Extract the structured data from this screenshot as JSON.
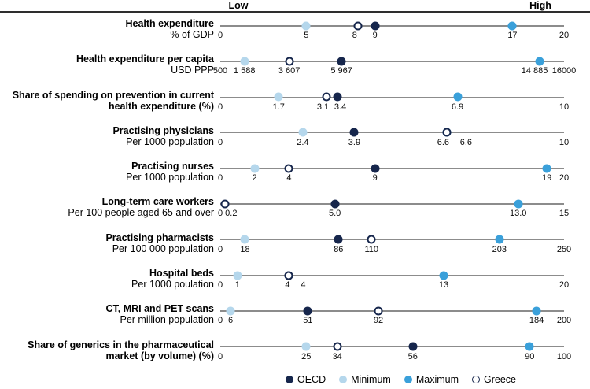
{
  "header": {
    "low": "Low",
    "high": "High"
  },
  "colors": {
    "oecd": "#16264c",
    "minimum": "#b5d7ec",
    "maximum": "#3aa0da",
    "greece_fill": "#ffffff",
    "greece_border": "#16264c",
    "axis_line": "#8c8c8c",
    "header_line": "#2e2e2e"
  },
  "legend": [
    {
      "series": "oecd",
      "label": "OECD"
    },
    {
      "series": "minimum",
      "label": "Minimum"
    },
    {
      "series": "maximum",
      "label": "Maximum"
    },
    {
      "series": "greece",
      "label": "Greece"
    }
  ],
  "chart_data": {
    "type": "scatter",
    "variant": "dot-range-plot",
    "legend_position": "bottom",
    "series_names": [
      "OECD",
      "Minimum",
      "Maximum",
      "Greece"
    ],
    "rows": [
      {
        "title": "Health expenditure",
        "subtitle": "% of GDP",
        "subtitle_bold": false,
        "axis": {
          "min": 0,
          "max": 20,
          "min_label": "0",
          "max_label": "20"
        },
        "points": [
          {
            "series": "minimum",
            "value": 5,
            "label": "5"
          },
          {
            "series": "greece",
            "value": 8,
            "label": "8",
            "label_dx": -4
          },
          {
            "series": "oecd",
            "value": 9,
            "label": "9"
          },
          {
            "series": "maximum",
            "value": 17,
            "label": "17"
          }
        ]
      },
      {
        "title": "Health expenditure per capita",
        "subtitle": "USD PPP",
        "subtitle_bold": false,
        "axis": {
          "min": 500,
          "max": 16000,
          "min_label": "500",
          "max_label": "16000"
        },
        "points": [
          {
            "series": "minimum",
            "value": 1588,
            "label": "1 588"
          },
          {
            "series": "greece",
            "value": 3607,
            "label": "3 607"
          },
          {
            "series": "oecd",
            "value": 5967,
            "label": "5 967"
          },
          {
            "series": "maximum",
            "value": 14885,
            "label": "14 885",
            "label_dx": -6
          }
        ]
      },
      {
        "title": "Share of spending on prevention in current",
        "subtitle": "health expenditure (%)",
        "subtitle_bold": true,
        "axis": {
          "min": 0,
          "max": 10,
          "min_label": "0",
          "max_label": "10"
        },
        "points": [
          {
            "series": "minimum",
            "value": 1.7,
            "label": "1.7"
          },
          {
            "series": "greece",
            "value": 3.1,
            "label": "3.1",
            "label_dx": -5
          },
          {
            "series": "oecd",
            "value": 3.4,
            "label": "3.4",
            "label_dx": 4
          },
          {
            "series": "maximum",
            "value": 6.9,
            "label": "6.9"
          }
        ]
      },
      {
        "title": "Practising physicians",
        "subtitle": "Per 1000 population",
        "subtitle_bold": false,
        "axis": {
          "min": 0,
          "max": 10,
          "min_label": "0",
          "max_label": "10"
        },
        "points": [
          {
            "series": "minimum",
            "value": 2.4,
            "label": "2.4"
          },
          {
            "series": "oecd",
            "value": 3.9,
            "label": "3.9"
          },
          {
            "series": "maximum",
            "value": 6.6,
            "label": "6.6",
            "label_dx": 24
          },
          {
            "series": "greece",
            "value": 6.6,
            "label": "6.6",
            "label_dx": -5
          }
        ]
      },
      {
        "title": "Practising nurses",
        "subtitle": "Per 1000 population",
        "subtitle_bold": false,
        "axis": {
          "min": 0,
          "max": 20,
          "min_label": "0",
          "max_label": "20"
        },
        "points": [
          {
            "series": "minimum",
            "value": 2,
            "label": "2"
          },
          {
            "series": "greece",
            "value": 4,
            "label": "4"
          },
          {
            "series": "oecd",
            "value": 9,
            "label": "9"
          },
          {
            "series": "maximum",
            "value": 19,
            "label": "19"
          }
        ]
      },
      {
        "title": "Long-term care workers",
        "subtitle": "Per 100 people aged 65 and over",
        "subtitle_bold": false,
        "axis": {
          "min": 0,
          "max": 15,
          "min_label": "0",
          "max_label": "15"
        },
        "points": [
          {
            "series": "oecd",
            "value": 5.0,
            "label": "5.0"
          },
          {
            "series": "maximum",
            "value": 13.0,
            "label": "13.0"
          },
          {
            "series": "greece",
            "value": 0.2,
            "label": "0.2",
            "label_dx": 8
          }
        ]
      },
      {
        "title": "Practising pharmacists",
        "subtitle": "Per 100 000 population",
        "subtitle_bold": false,
        "axis": {
          "min": 0,
          "max": 250,
          "min_label": "0",
          "max_label": "250"
        },
        "points": [
          {
            "series": "minimum",
            "value": 18,
            "label": "18"
          },
          {
            "series": "oecd",
            "value": 86,
            "label": "86"
          },
          {
            "series": "greece",
            "value": 110,
            "label": "110"
          },
          {
            "series": "maximum",
            "value": 203,
            "label": "203"
          }
        ]
      },
      {
        "title": "Hospital beds",
        "subtitle": "Per 1000 poulation",
        "subtitle_bold": false,
        "axis": {
          "min": 0,
          "max": 20,
          "min_label": "0",
          "max_label": "20"
        },
        "points": [
          {
            "series": "minimum",
            "value": 1,
            "label": "1"
          },
          {
            "series": "oecd",
            "value": 4,
            "label": "4",
            "label_dx": 18
          },
          {
            "series": "maximum",
            "value": 13,
            "label": "13"
          },
          {
            "series": "greece",
            "value": 4,
            "label": "4",
            "label_dx": -2
          }
        ]
      },
      {
        "title": "CT, MRI and PET scans",
        "subtitle": "Per million population",
        "subtitle_bold": false,
        "axis": {
          "min": 0,
          "max": 200,
          "min_label": "0",
          "max_label": "200"
        },
        "points": [
          {
            "series": "minimum",
            "value": 6,
            "label": "6"
          },
          {
            "series": "oecd",
            "value": 51,
            "label": "51"
          },
          {
            "series": "greece",
            "value": 92,
            "label": "92"
          },
          {
            "series": "maximum",
            "value": 184,
            "label": "184"
          }
        ]
      },
      {
        "title": "Share of generics in the pharmaceutical",
        "subtitle": "market (by volume) (%)",
        "subtitle_bold": true,
        "axis": {
          "min": 0,
          "max": 100,
          "min_label": "0",
          "max_label": "100"
        },
        "points": [
          {
            "series": "minimum",
            "value": 25,
            "label": "25"
          },
          {
            "series": "greece",
            "value": 34,
            "label": "34"
          },
          {
            "series": "oecd",
            "value": 56,
            "label": "56"
          },
          {
            "series": "maximum",
            "value": 90,
            "label": "90"
          }
        ]
      }
    ]
  }
}
